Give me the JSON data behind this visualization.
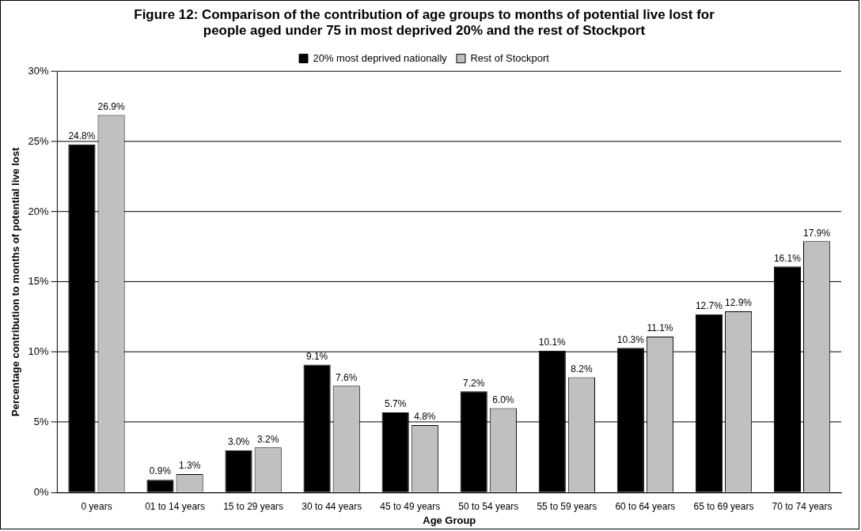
{
  "chart_data": {
    "type": "bar",
    "title": "Figure 12: Comparison of the contribution of age groups to months of potential live lost for people aged under 75 in most deprived 20% and the rest of Stockport",
    "xlabel": "Age Group",
    "ylabel": "Percentage contribution to months of potential live lost",
    "categories": [
      "0 years",
      "01 to 14 years",
      "15 to 29 years",
      "30 to 44 years",
      "45 to 49 years",
      "50 to 54 years",
      "55 to 59 years",
      "60 to 64 years",
      "65 to 69 years",
      "70 to 74 years"
    ],
    "series": [
      {
        "name": "20% most deprived nationally",
        "color": "#000000",
        "values": [
          24.8,
          0.9,
          3.0,
          9.1,
          5.7,
          7.2,
          10.1,
          10.3,
          12.7,
          16.1
        ],
        "value_labels": [
          "24.8%",
          "0.9%",
          "3.0%",
          "9.1%",
          "5.7%",
          "7.2%",
          "10.1%",
          "10.3%",
          "12.7%",
          "16.1%"
        ]
      },
      {
        "name": "Rest of Stockport",
        "color": "#c0c0c0",
        "values": [
          26.9,
          1.3,
          3.2,
          7.6,
          4.8,
          6.0,
          8.2,
          11.1,
          12.9,
          17.9
        ],
        "value_labels": [
          "26.9%",
          "1.3%",
          "3.2%",
          "7.6%",
          "4.8%",
          "6.0%",
          "8.2%",
          "11.1%",
          "12.9%",
          "17.9%"
        ]
      }
    ],
    "ylim": [
      0,
      30
    ],
    "yticks": [
      {
        "value": 0,
        "label": "0%"
      },
      {
        "value": 5,
        "label": "5%"
      },
      {
        "value": 10,
        "label": "10%"
      },
      {
        "value": 15,
        "label": "15%"
      },
      {
        "value": 20,
        "label": "20%"
      },
      {
        "value": 25,
        "label": "25%"
      },
      {
        "value": 30,
        "label": "30%"
      }
    ],
    "grid": "y",
    "legend": "top"
  }
}
